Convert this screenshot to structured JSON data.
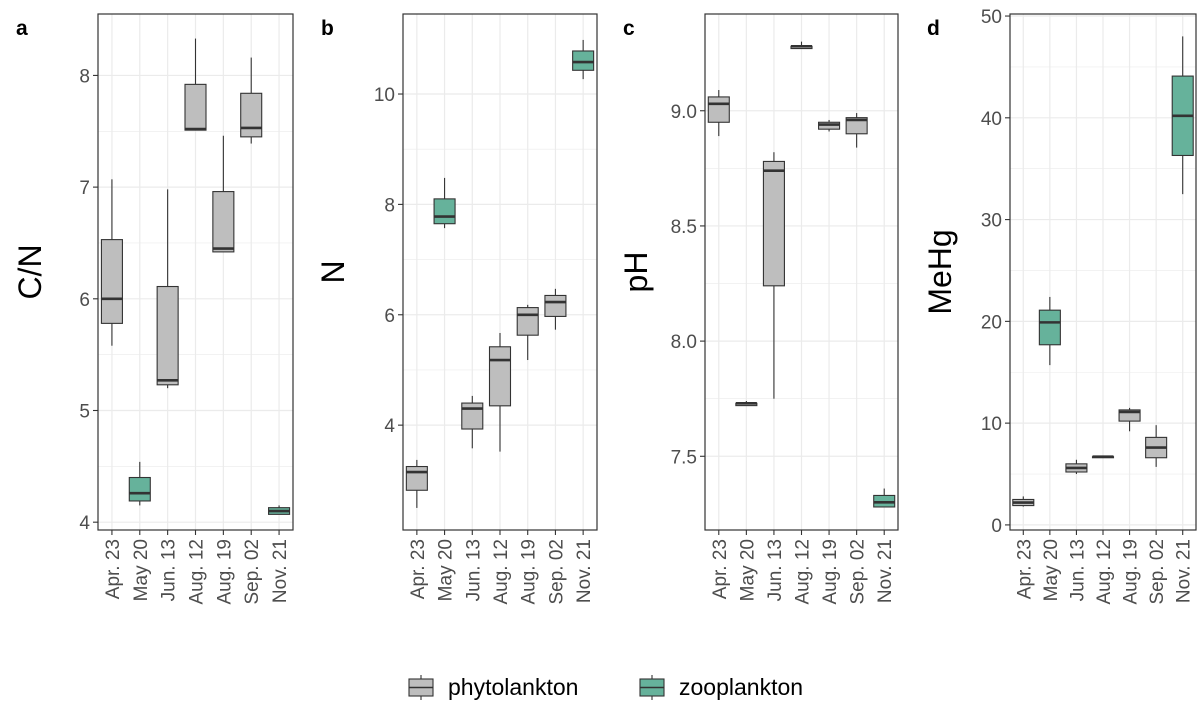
{
  "chart_data": [
    {
      "type": "box",
      "panel_label": "a",
      "ylabel": "C/N",
      "ylim": [
        3.93,
        8.55
      ],
      "yticks": [
        4,
        5,
        6,
        7,
        8
      ],
      "grid": true,
      "categories": [
        "Apr. 23",
        "May 20",
        "Jun. 13",
        "Aug. 12",
        "Aug. 19",
        "Sep. 02",
        "Nov. 21"
      ],
      "boxes": [
        {
          "category": "Apr. 23",
          "group": "phytolankton",
          "min": 5.58,
          "q1": 5.78,
          "median": 6.0,
          "q3": 6.53,
          "max": 7.07
        },
        {
          "category": "May 20",
          "group": "zooplankton",
          "min": 4.15,
          "q1": 4.19,
          "median": 4.26,
          "q3": 4.4,
          "max": 4.54
        },
        {
          "category": "Jun. 13",
          "group": "phytolankton",
          "min": 5.2,
          "q1": 5.23,
          "median": 5.27,
          "q3": 6.11,
          "max": 6.98
        },
        {
          "category": "Aug. 12",
          "group": "phytolankton",
          "min": 7.51,
          "q1": 7.51,
          "median": 7.52,
          "q3": 7.92,
          "max": 8.33
        },
        {
          "category": "Aug. 19",
          "group": "phytolankton",
          "min": 6.42,
          "q1": 6.42,
          "median": 6.45,
          "q3": 6.96,
          "max": 7.46
        },
        {
          "category": "Sep. 02",
          "group": "phytolankton",
          "min": 7.39,
          "q1": 7.45,
          "median": 7.53,
          "q3": 7.84,
          "max": 8.16
        },
        {
          "category": "Nov. 21",
          "group": "zooplankton",
          "min": 4.07,
          "q1": 4.07,
          "median": 4.1,
          "q3": 4.13,
          "max": 4.15
        }
      ]
    },
    {
      "type": "box",
      "panel_label": "b",
      "ylabel": "N",
      "ylim": [
        2.1,
        11.45
      ],
      "yticks": [
        4,
        6,
        8,
        10
      ],
      "grid": true,
      "categories": [
        "Apr. 23",
        "May 20",
        "Jun. 13",
        "Aug. 12",
        "Aug. 19",
        "Sep. 02",
        "Nov. 21"
      ],
      "boxes": [
        {
          "category": "Apr. 23",
          "group": "phytolankton",
          "min": 2.5,
          "q1": 2.82,
          "median": 3.15,
          "q3": 3.25,
          "max": 3.37
        },
        {
          "category": "May 20",
          "group": "zooplankton",
          "min": 7.57,
          "q1": 7.65,
          "median": 7.78,
          "q3": 8.1,
          "max": 8.48
        },
        {
          "category": "Jun. 13",
          "group": "phytolankton",
          "min": 3.58,
          "q1": 3.93,
          "median": 4.3,
          "q3": 4.4,
          "max": 4.53
        },
        {
          "category": "Aug. 12",
          "group": "phytolankton",
          "min": 3.52,
          "q1": 4.35,
          "median": 5.18,
          "q3": 5.42,
          "max": 5.67
        },
        {
          "category": "Aug. 19",
          "group": "phytolankton",
          "min": 5.18,
          "q1": 5.63,
          "median": 6.0,
          "q3": 6.13,
          "max": 6.18
        },
        {
          "category": "Sep. 02",
          "group": "phytolankton",
          "min": 5.73,
          "q1": 5.97,
          "median": 6.23,
          "q3": 6.35,
          "max": 6.47
        },
        {
          "category": "Nov. 21",
          "group": "zooplankton",
          "min": 10.27,
          "q1": 10.43,
          "median": 10.58,
          "q3": 10.78,
          "max": 10.98
        }
      ]
    },
    {
      "type": "box",
      "panel_label": "c",
      "ylabel": "pH",
      "ylim": [
        7.18,
        9.42
      ],
      "yticks": [
        7.5,
        8.0,
        8.5,
        9.0
      ],
      "ytick_labels": [
        "7.5",
        "8.0",
        "8.5",
        "9.0"
      ],
      "grid": true,
      "categories": [
        "Apr. 23",
        "May 20",
        "Jun. 13",
        "Aug. 12",
        "Aug. 19",
        "Sep. 02",
        "Nov. 21"
      ],
      "boxes": [
        {
          "category": "Apr. 23",
          "group": "phytolankton",
          "min": 8.89,
          "q1": 8.95,
          "median": 9.03,
          "q3": 9.06,
          "max": 9.09
        },
        {
          "category": "May 20",
          "group": "phytolankton",
          "min": 7.72,
          "q1": 7.72,
          "median": 7.73,
          "q3": 7.73,
          "max": 7.74
        },
        {
          "category": "Jun. 13",
          "group": "phytolankton",
          "min": 7.75,
          "q1": 8.24,
          "median": 8.74,
          "q3": 8.78,
          "max": 8.82
        },
        {
          "category": "Aug. 12",
          "group": "phytolankton",
          "min": 9.27,
          "q1": 9.27,
          "median": 9.28,
          "q3": 9.28,
          "max": 9.3
        },
        {
          "category": "Aug. 19",
          "group": "phytolankton",
          "min": 8.91,
          "q1": 8.92,
          "median": 8.94,
          "q3": 8.95,
          "max": 8.96
        },
        {
          "category": "Sep. 02",
          "group": "phytolankton",
          "min": 8.84,
          "q1": 8.9,
          "median": 8.96,
          "q3": 8.97,
          "max": 8.99
        },
        {
          "category": "Nov. 21",
          "group": "zooplankton",
          "min": 7.28,
          "q1": 7.28,
          "median": 7.3,
          "q3": 7.33,
          "max": 7.36
        }
      ]
    },
    {
      "type": "box",
      "panel_label": "d",
      "ylabel": "MeHg",
      "ylim": [
        -0.5,
        50.2
      ],
      "yticks": [
        0,
        10,
        20,
        30,
        40,
        50
      ],
      "grid": true,
      "categories": [
        "Apr. 23",
        "May 20",
        "Jun. 13",
        "Aug. 12",
        "Aug. 19",
        "Sep. 02",
        "Nov. 21"
      ],
      "boxes": [
        {
          "category": "Apr. 23",
          "group": "phytolankton",
          "min": 1.8,
          "q1": 1.9,
          "median": 2.2,
          "q3": 2.5,
          "max": 2.8
        },
        {
          "category": "May 20",
          "group": "zooplankton",
          "min": 15.7,
          "q1": 17.7,
          "median": 19.9,
          "q3": 21.1,
          "max": 22.4
        },
        {
          "category": "Jun. 13",
          "group": "phytolankton",
          "min": 5.0,
          "q1": 5.2,
          "median": 5.6,
          "q3": 6.0,
          "max": 6.4
        },
        {
          "category": "Aug. 12",
          "group": "phytolankton",
          "min": 6.6,
          "q1": 6.6,
          "median": 6.7,
          "q3": 6.7,
          "max": 6.8
        },
        {
          "category": "Aug. 19",
          "group": "phytolankton",
          "min": 9.2,
          "q1": 10.2,
          "median": 11.1,
          "q3": 11.3,
          "max": 11.5
        },
        {
          "category": "Sep. 02",
          "group": "phytolankton",
          "min": 5.7,
          "q1": 6.6,
          "median": 7.6,
          "q3": 8.6,
          "max": 9.8
        },
        {
          "category": "Nov. 21",
          "group": "zooplankton",
          "min": 32.5,
          "q1": 36.3,
          "median": 40.2,
          "q3": 44.1,
          "max": 48.0
        }
      ]
    }
  ],
  "legend": {
    "placement": "bottom",
    "items": [
      {
        "label": "phytolankton",
        "color": "#bebebe"
      },
      {
        "label": "zooplankton",
        "color": "#66b29b"
      }
    ]
  },
  "colors": {
    "phytolankton": "#bebebe",
    "zooplankton": "#66b29b",
    "box_stroke": "#333333",
    "grid": "#ebebeb",
    "panel_border": "#333333"
  }
}
